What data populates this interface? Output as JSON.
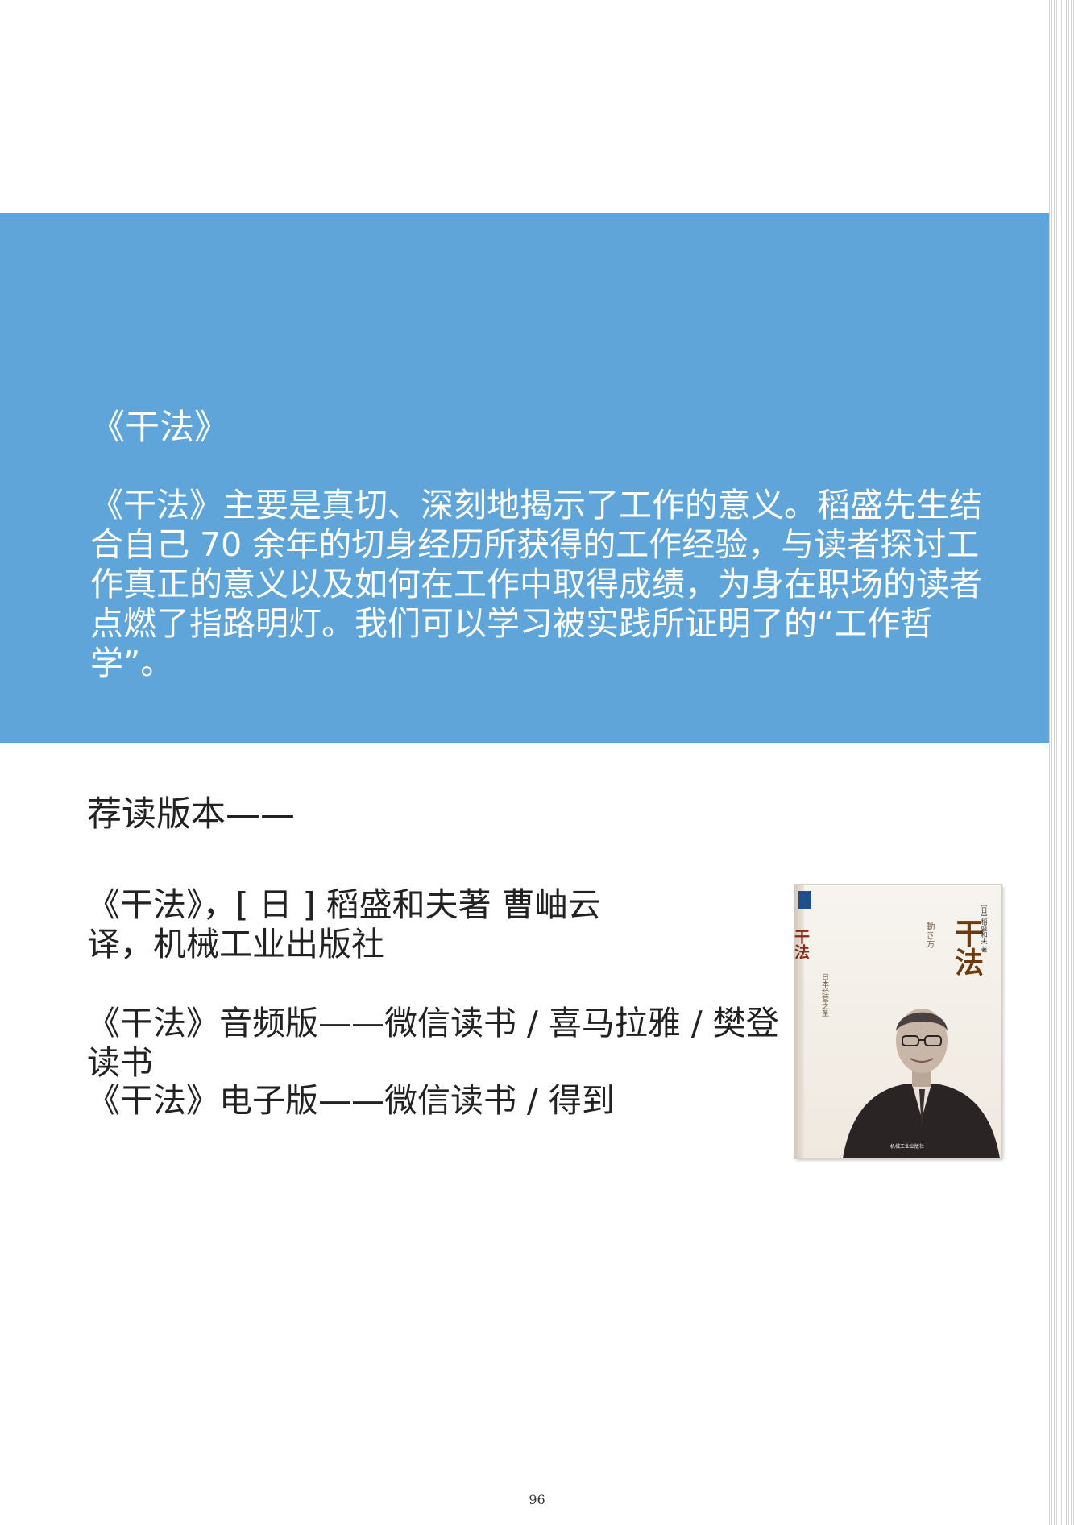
{
  "section": {
    "title": "《干法》",
    "body": "《干法》主要是真切、深刻地揭示了工作的意义。稻盛先生结合自己 70 余年的切身经历所获得的工作经验，与读者探讨工作真正的意义以及如何在工作中取得成绩，为身在职场的读者点燃了指路明灯。我们可以学习被实践所证明了的“工作哲学”。"
  },
  "recommend": {
    "heading": "荐读版本——",
    "entries": [
      "《干法》，[ 日 ] 稻盛和夫著 曹岫云译，机械工业出版社",
      "《干法》音频版——微信读书 / 喜马拉雅 / 樊登读书",
      "《干法》电子版——微信读书 / 得到"
    ]
  },
  "book_cover": {
    "spine_title": "干法",
    "title": "干法",
    "subtitle": "動き方",
    "author_line": "[日] 稻盛和夫 著",
    "series": "日本经营之圣",
    "publisher": "机械工业出版社"
  },
  "page_number": "96",
  "colors": {
    "band": "#5fa5d9",
    "text": "#222222"
  }
}
